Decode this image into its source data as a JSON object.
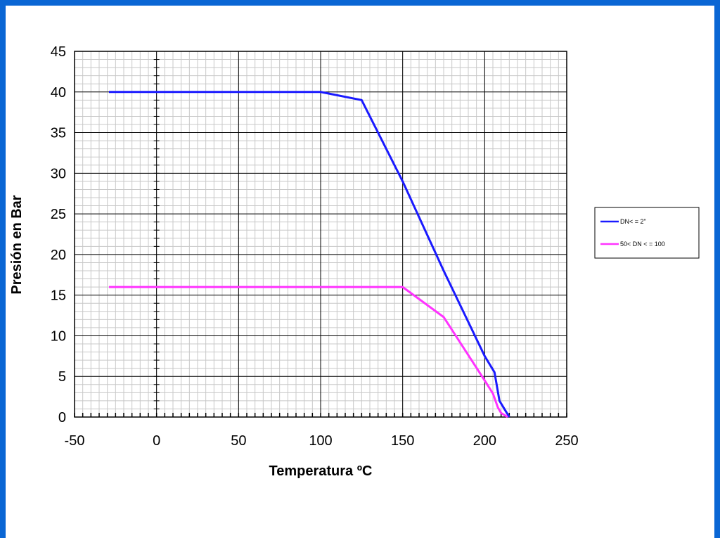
{
  "colors": {
    "background": "#0a66d4",
    "grid_minor": "#c8c8c8",
    "grid_major": "#000000"
  },
  "chart_data": {
    "type": "line",
    "title": "",
    "xlabel": "Temperatura ºC",
    "ylabel": "Presión en Bar",
    "xlim": [
      -50,
      250
    ],
    "ylim": [
      0,
      45
    ],
    "xticks": [
      -50,
      0,
      50,
      100,
      150,
      200,
      250
    ],
    "yticks": [
      0,
      5,
      10,
      15,
      20,
      25,
      30,
      35,
      40,
      45
    ],
    "grid": true,
    "legend_position": "right",
    "series": [
      {
        "name": "DN< = 2\"",
        "color": "#1a1aff",
        "x": [
          -29,
          100,
          125,
          150,
          175,
          200,
          206,
          209,
          212,
          215
        ],
        "y": [
          40,
          40,
          39,
          29,
          18,
          7.5,
          5.5,
          2,
          1,
          0
        ]
      },
      {
        "name": "50< DN < = 100",
        "color": "#ff33ff",
        "x": [
          -29,
          150,
          175,
          200,
          205,
          208,
          210,
          214
        ],
        "y": [
          16,
          16,
          12.3,
          4.5,
          2.9,
          1.2,
          0.5,
          0
        ]
      }
    ]
  }
}
